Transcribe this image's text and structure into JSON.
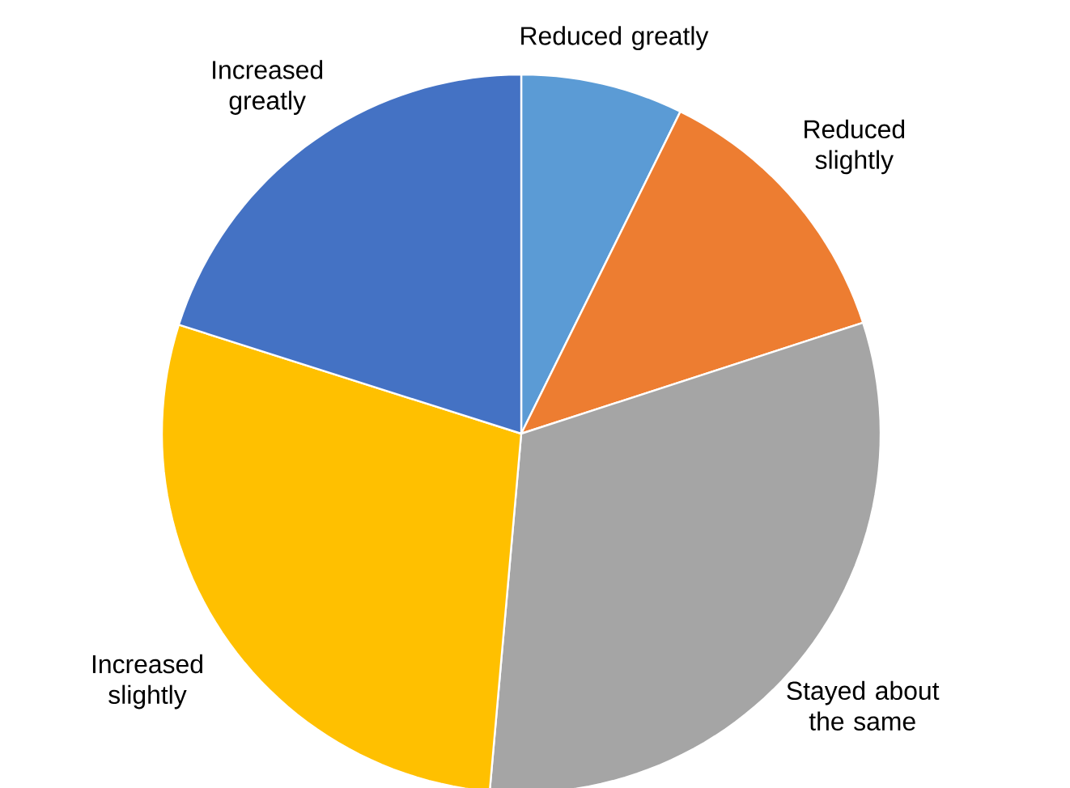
{
  "chart_data": {
    "type": "pie",
    "categories": [
      "Reduced greatly",
      "Reduced slightly",
      "Stayed about the same",
      "Increased slightly",
      "Increased greatly"
    ],
    "values": [
      7.3,
      12.7,
      31.4,
      28.5,
      20.1
    ],
    "colors": [
      "#5b9bd5",
      "#ed7d31",
      "#a5a5a5",
      "#ffc000",
      "#4472c4"
    ]
  }
}
